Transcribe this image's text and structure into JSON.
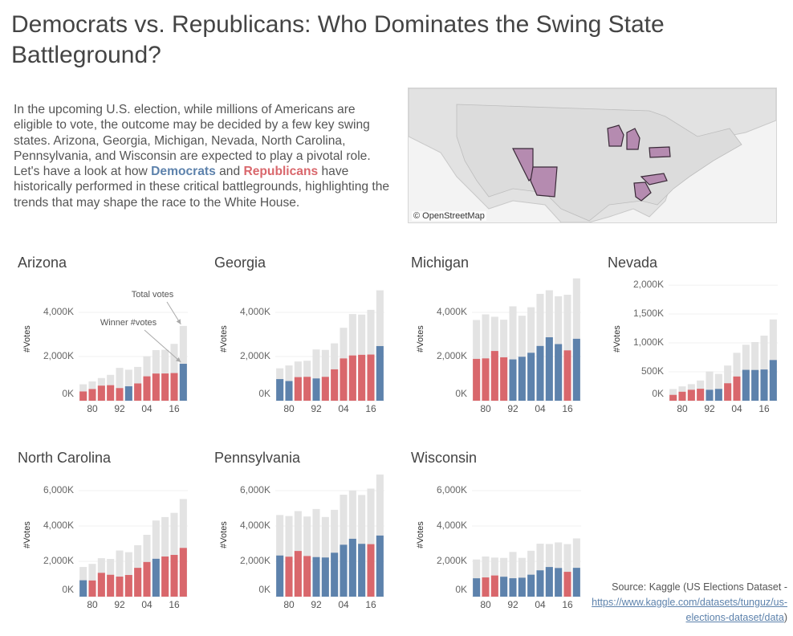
{
  "header": {
    "title": "Democrats vs. Republicans: Who Dominates the Swing State Battleground?"
  },
  "intro": {
    "before": "In the upcoming U.S. election, while millions of Americans are eligible to vote, the outcome may be decided by a few key swing states. Arizona, Georgia, Michigan, Nevada, North Carolina, Pennsylvania, and Wisconsin are expected to play a pivotal role. Let's have a look at how ",
    "democrats": "Democrats",
    "middle": " and ",
    "republicans": "Republicans",
    "after": " have historically performed in these critical battlegrounds, highlighting the trends that may shape the race to the White House."
  },
  "map": {
    "attribution": "© OpenStreetMap"
  },
  "source": {
    "prefix": "Source: Kaggle (US Elections Dataset - ",
    "link": "https://www.kaggle.com/datasets/tunguz/us-elections-dataset/data",
    "suffix": ")"
  },
  "chart_data": [
    {
      "type": "bar",
      "title": "Arizona",
      "y_label": "#Votes",
      "annotations": [
        "Total votes",
        "Winner #votes"
      ],
      "categories": [
        null,
        "80",
        null,
        null,
        "92",
        null,
        null,
        "04",
        null,
        null,
        "16",
        null
      ],
      "ylim": [
        0,
        5600
      ],
      "yticks": [
        {
          "value": 0,
          "label": "0K"
        },
        {
          "value": 2000,
          "label": "2,000K"
        },
        {
          "value": 4000,
          "label": "4,000K"
        }
      ],
      "series": [
        {
          "color": "#e3e3e3",
          "values": [
            743,
            874,
            1026,
            1171,
            1487,
            1404,
            1532,
            2013,
            2293,
            2306,
            2573,
            3387
          ]
        },
        {
          "colors": [
            "#d9676c",
            "#d9676c",
            "#d9676c",
            "#d9676c",
            "#d9676c",
            "#5d82ac",
            "#d9676c",
            "#d9676c",
            "#d9676c",
            "#d9676c",
            "#d9676c",
            "#5d82ac"
          ],
          "values": [
            419,
            529,
            682,
            702,
            572,
            653,
            782,
            1104,
            1230,
            1233,
            1252,
            1672
          ]
        }
      ]
    },
    {
      "type": "bar",
      "title": "Georgia",
      "y_label": "#Votes",
      "categories": [
        null,
        "80",
        null,
        null,
        "92",
        null,
        null,
        "04",
        null,
        null,
        "16",
        null
      ],
      "ylim": [
        0,
        5600
      ],
      "yticks": [
        {
          "value": 0,
          "label": "0K"
        },
        {
          "value": 2000,
          "label": "2,000K"
        },
        {
          "value": 4000,
          "label": "4,000K"
        }
      ],
      "series": [
        {
          "color": "#e3e3e3",
          "values": [
            1467,
            1597,
            1776,
            1810,
            2321,
            2299,
            2597,
            3302,
            3924,
            3900,
            4115,
            4999
          ]
        },
        {
          "colors": [
            "#5d82ac",
            "#5d82ac",
            "#d9676c",
            "#d9676c",
            "#5d82ac",
            "#d9676c",
            "#d9676c",
            "#d9676c",
            "#d9676c",
            "#d9676c",
            "#d9676c",
            "#5d82ac"
          ],
          "values": [
            979,
            891,
            1068,
            1081,
            1008,
            1080,
            1420,
            1914,
            2049,
            2078,
            2090,
            2474
          ]
        }
      ]
    },
    {
      "type": "bar",
      "title": "Michigan",
      "y_label": "#Votes",
      "categories": [
        null,
        "80",
        null,
        null,
        "92",
        null,
        null,
        "04",
        null,
        null,
        "16",
        null
      ],
      "ylim": [
        0,
        5600
      ],
      "yticks": [
        {
          "value": 0,
          "label": "0K"
        },
        {
          "value": 2000,
          "label": "2,000K"
        },
        {
          "value": 4000,
          "label": "4,000K"
        }
      ],
      "series": [
        {
          "color": "#e3e3e3",
          "values": [
            3654,
            3910,
            3802,
            3669,
            4275,
            3849,
            4232,
            4839,
            5001,
            4730,
            4799,
            5539
          ]
        },
        {
          "colors": [
            "#d9676c",
            "#d9676c",
            "#d9676c",
            "#d9676c",
            "#5d82ac",
            "#5d82ac",
            "#5d82ac",
            "#5d82ac",
            "#5d82ac",
            "#5d82ac",
            "#d9676c",
            "#5d82ac"
          ],
          "values": [
            1894,
            1916,
            2251,
            1965,
            1871,
            1990,
            2170,
            2479,
            2873,
            2564,
            2280,
            2804
          ]
        }
      ]
    },
    {
      "type": "bar",
      "title": "Nevada",
      "y_label": "#Votes",
      "categories": [
        null,
        "80",
        null,
        null,
        "92",
        null,
        null,
        "04",
        null,
        null,
        "16",
        null
      ],
      "ylim": [
        0,
        2140
      ],
      "yticks": [
        {
          "value": 0,
          "label": "0K"
        },
        {
          "value": 500,
          "label": "500K"
        },
        {
          "value": 1000,
          "label": "1,000K"
        },
        {
          "value": 1500,
          "label": "1,500K"
        },
        {
          "value": 2000,
          "label": "2,000K"
        }
      ],
      "series": [
        {
          "color": "#e3e3e3",
          "values": [
            202,
            248,
            287,
            350,
            507,
            464,
            609,
            829,
            968,
            1015,
            1126,
            1406
          ]
        },
        {
          "colors": [
            "#d9676c",
            "#d9676c",
            "#d9676c",
            "#d9676c",
            "#5d82ac",
            "#5d82ac",
            "#d9676c",
            "#d9676c",
            "#5d82ac",
            "#5d82ac",
            "#5d82ac",
            "#5d82ac"
          ],
          "values": [
            101,
            155,
            189,
            207,
            189,
            204,
            302,
            419,
            534,
            532,
            540,
            704
          ]
        }
      ]
    },
    {
      "type": "bar",
      "title": "North Carolina",
      "y_label": "#Votes",
      "categories": [
        null,
        "80",
        null,
        null,
        "92",
        null,
        null,
        "04",
        null,
        null,
        "16",
        null
      ],
      "ylim": [
        0,
        7000
      ],
      "yticks": [
        {
          "value": 0,
          "label": "0K"
        },
        {
          "value": 2000,
          "label": "2,000K"
        },
        {
          "value": 4000,
          "label": "4,000K"
        },
        {
          "value": 6000,
          "label": "6,000K"
        }
      ],
      "series": [
        {
          "color": "#e3e3e3",
          "values": [
            1679,
            1856,
            2176,
            2134,
            2612,
            2516,
            2911,
            3501,
            4311,
            4505,
            4742,
            5525
          ]
        },
        {
          "colors": [
            "#5d82ac",
            "#d9676c",
            "#d9676c",
            "#d9676c",
            "#d9676c",
            "#d9676c",
            "#d9676c",
            "#d9676c",
            "#5d82ac",
            "#d9676c",
            "#d9676c",
            "#d9676c"
          ],
          "values": [
            927,
            915,
            1347,
            1238,
            1135,
            1226,
            1631,
            1961,
            2143,
            2271,
            2363,
            2758
          ]
        }
      ]
    },
    {
      "type": "bar",
      "title": "Pennsylvania",
      "y_label": "#Votes",
      "categories": [
        null,
        "80",
        null,
        null,
        "92",
        null,
        null,
        "04",
        null,
        null,
        "16",
        null
      ],
      "ylim": [
        0,
        7000
      ],
      "yticks": [
        {
          "value": 0,
          "label": "0K"
        },
        {
          "value": 2000,
          "label": "2,000K"
        },
        {
          "value": 4000,
          "label": "4,000K"
        },
        {
          "value": 6000,
          "label": "6,000K"
        }
      ],
      "series": [
        {
          "color": "#e3e3e3",
          "values": [
            4621,
            4562,
            4844,
            4536,
            4960,
            4507,
            4913,
            5770,
            6013,
            5754,
            6116,
            6915
          ]
        },
        {
          "colors": [
            "#5d82ac",
            "#d9676c",
            "#d9676c",
            "#d9676c",
            "#5d82ac",
            "#5d82ac",
            "#5d82ac",
            "#5d82ac",
            "#5d82ac",
            "#5d82ac",
            "#d9676c",
            "#5d82ac"
          ],
          "values": [
            2329,
            2262,
            2585,
            2300,
            2239,
            2216,
            2486,
            2938,
            3276,
            2990,
            2971,
            3459
          ]
        }
      ]
    },
    {
      "type": "bar",
      "title": "Wisconsin",
      "y_label": "#Votes",
      "categories": [
        null,
        "80",
        null,
        null,
        "92",
        null,
        null,
        "04",
        null,
        null,
        "16",
        null
      ],
      "ylim": [
        0,
        7000
      ],
      "yticks": [
        {
          "value": 0,
          "label": "0K"
        },
        {
          "value": 2000,
          "label": "2,000K"
        },
        {
          "value": 4000,
          "label": "4,000K"
        },
        {
          "value": 6000,
          "label": "6,000K"
        }
      ],
      "series": [
        {
          "color": "#e3e3e3",
          "values": [
            2104,
            2273,
            2212,
            2192,
            2532,
            2196,
            2599,
            2997,
            2983,
            3069,
            2976,
            3298
          ]
        },
        {
          "colors": [
            "#5d82ac",
            "#d9676c",
            "#d9676c",
            "#5d82ac",
            "#5d82ac",
            "#5d82ac",
            "#5d82ac",
            "#5d82ac",
            "#5d82ac",
            "#5d82ac",
            "#d9676c",
            "#5d82ac"
          ],
          "values": [
            1040,
            1088,
            1198,
            1127,
            1042,
            1072,
            1243,
            1490,
            1677,
            1621,
            1405,
            1631
          ]
        }
      ]
    }
  ]
}
